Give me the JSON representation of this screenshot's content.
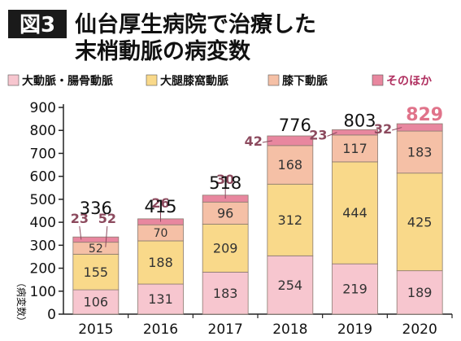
{
  "figure_label": "図3",
  "title_lines": [
    "仙台厚生病院で治療した",
    "末梢動脈の病変数"
  ],
  "ylabel": "（病変数）",
  "colors": {
    "label_bg": "#1a1a1a",
    "label_fg": "#ffffff",
    "axis": "#222222",
    "total": "#111111",
    "total_highlight": "#e0738a",
    "small_label": "#8c4a5e"
  },
  "chart_data": {
    "type": "bar",
    "stacked": true,
    "categories": [
      "2015",
      "2016",
      "2017",
      "2018",
      "2019",
      "2020"
    ],
    "series": [
      {
        "name": "大動脈・腸骨動脈",
        "color": "#f7c6cf",
        "values": [
          106,
          131,
          183,
          254,
          219,
          189
        ]
      },
      {
        "name": "大腿膝窩動脈",
        "color": "#f9d98a",
        "values": [
          155,
          188,
          209,
          312,
          444,
          425
        ]
      },
      {
        "name": "膝下動脈",
        "color": "#f5c0a6",
        "values": [
          52,
          70,
          96,
          168,
          117,
          183
        ]
      },
      {
        "name": "そのほか",
        "color": "#e8879f",
        "values": [
          23,
          26,
          30,
          42,
          23,
          32
        ]
      }
    ],
    "totals": [
      336,
      415,
      518,
      776,
      803,
      829
    ],
    "ylim": [
      0,
      900
    ],
    "yticks": [
      0,
      100,
      200,
      300,
      400,
      500,
      600,
      700,
      800,
      900
    ],
    "grid": false,
    "legend_position": "top"
  }
}
